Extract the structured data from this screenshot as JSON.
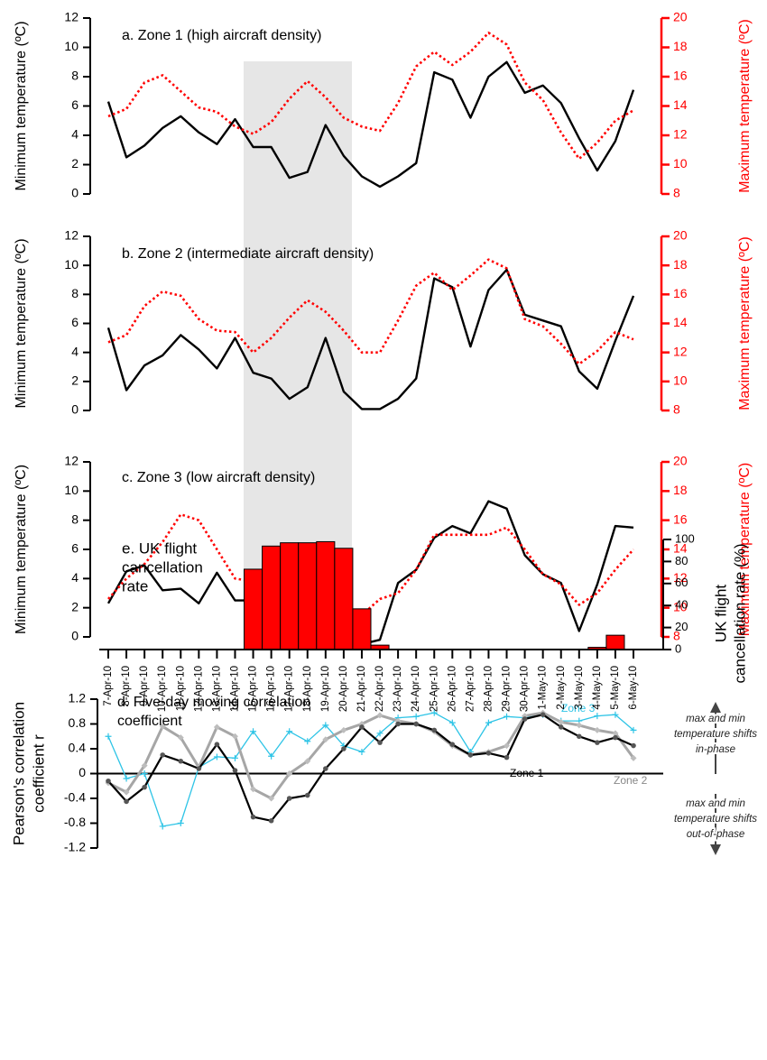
{
  "chart_data": [
    {
      "type": "line",
      "title": "a. Zone 1 (high aircraft density)",
      "ylabel": "Minimum temperature (ºC)",
      "y2label": "Maximum temperature (ºC)",
      "ylim": [
        0,
        12
      ],
      "yticks": [
        0,
        2,
        4,
        6,
        8,
        10,
        12
      ],
      "y2lim": [
        8,
        20
      ],
      "y2ticks": [
        8,
        10,
        12,
        14,
        16,
        18,
        20
      ],
      "series": [
        {
          "color": "#000000",
          "style": "solid",
          "values": [
            6.3,
            2.5,
            3.3,
            4.5,
            5.3,
            4.2,
            3.4,
            5.1,
            3.2,
            3.2,
            1.1,
            1.5,
            4.7,
            2.6,
            1.2,
            0.5,
            1.2,
            2.1,
            8.3,
            7.8,
            5.2,
            8.0,
            9.0,
            6.9,
            7.4,
            6.2,
            3.8,
            1.6,
            3.6,
            7.1
          ]
        },
        {
          "color": "#ff0000",
          "style": "dotted",
          "axis": "y2",
          "values": [
            13.3,
            13.8,
            15.6,
            16.1,
            15.0,
            13.9,
            13.6,
            12.6,
            12.1,
            12.9,
            14.5,
            15.7,
            14.6,
            13.2,
            12.6,
            12.3,
            14.2,
            16.7,
            17.7,
            16.8,
            17.7,
            19.0,
            18.2,
            15.6,
            14.4,
            12.2,
            10.4,
            11.5,
            13.0,
            13.7
          ]
        }
      ]
    },
    {
      "type": "line",
      "title": "b. Zone 2 (intermediate aircraft density)",
      "ylabel": "Minimum temperature (ºC)",
      "y2label": "Maximum temperature (ºC)",
      "ylim": [
        0,
        12
      ],
      "yticks": [
        0,
        2,
        4,
        6,
        8,
        10,
        12
      ],
      "y2lim": [
        8,
        20
      ],
      "y2ticks": [
        8,
        10,
        12,
        14,
        16,
        18,
        20
      ],
      "series": [
        {
          "color": "#000000",
          "style": "solid",
          "values": [
            5.7,
            1.4,
            3.1,
            3.8,
            5.2,
            4.2,
            2.9,
            5.0,
            2.6,
            2.2,
            0.8,
            1.6,
            5.0,
            1.3,
            0.1,
            0.1,
            0.8,
            2.2,
            9.1,
            8.5,
            4.4,
            8.3,
            9.7,
            6.6,
            6.2,
            5.8,
            2.7,
            1.5,
            4.8,
            7.9
          ]
        },
        {
          "color": "#ff0000",
          "style": "dotted",
          "axis": "y2",
          "values": [
            12.7,
            13.2,
            15.2,
            16.2,
            15.9,
            14.3,
            13.5,
            13.4,
            12.0,
            13.0,
            14.4,
            15.6,
            14.8,
            13.5,
            12.0,
            12.0,
            14.2,
            16.6,
            17.5,
            16.3,
            17.3,
            18.4,
            17.8,
            14.3,
            13.8,
            12.6,
            11.2,
            12.1,
            13.4,
            12.9
          ]
        }
      ]
    },
    {
      "type": "line",
      "title": "c. Zone 3 (low aircraft density)",
      "ylabel": "Minimum temperature (ºC)",
      "y2label": "Maximum temperature (ºC)",
      "ylim": [
        0,
        12
      ],
      "yticks": [
        0,
        2,
        4,
        6,
        8,
        10,
        12
      ],
      "y2lim": [
        8,
        20
      ],
      "y2ticks": [
        8,
        10,
        12,
        14,
        16,
        18,
        20
      ],
      "series": [
        {
          "color": "#000000",
          "style": "solid",
          "values": [
            2.3,
            4.5,
            4.9,
            3.2,
            3.3,
            2.3,
            4.4,
            2.5,
            2.5,
            1.4,
            3.6,
            3.2,
            0.8,
            2.4,
            -0.5,
            -0.2,
            3.7,
            4.6,
            6.8,
            7.6,
            7.1,
            9.3,
            8.8,
            5.6,
            4.3,
            3.7,
            0.4,
            3.6,
            7.6,
            7.5
          ]
        },
        {
          "color": "#ff0000",
          "style": "dotted",
          "axis": "y2",
          "values": [
            10.6,
            12.0,
            13.0,
            14.5,
            16.4,
            16.0,
            14.0,
            12.0,
            11.8,
            13.0,
            14.0,
            11.8,
            10.0,
            9.5,
            9.5,
            10.6,
            11.0,
            12.6,
            15.0,
            15.0,
            15.0,
            15.0,
            15.5,
            14.0,
            12.3,
            11.6,
            10.2,
            11.0,
            12.6,
            14.0
          ]
        }
      ]
    },
    {
      "type": "correlation",
      "title": [
        "d. Five-day moving correlation",
        "coefficient"
      ],
      "ylabel": [
        "Pearson's correlation",
        "coefficient r"
      ],
      "ylim": [
        -1.2,
        1.2
      ],
      "yticks": [
        -1.2,
        -0.8,
        -0.4,
        0,
        0.4,
        0.8,
        1.2
      ],
      "zero_line": true,
      "annotations": [
        [
          "max and min",
          "temperature shifts",
          "in-phase"
        ],
        [
          "max and min",
          "temperature shifts",
          "out-of-phase"
        ]
      ],
      "series": [
        {
          "name": "Zone 1",
          "color": "#000000",
          "marker": "circle",
          "values": [
            -0.12,
            -0.45,
            -0.22,
            0.3,
            0.2,
            0.08,
            0.47,
            0.05,
            -0.7,
            -0.76,
            -0.4,
            -0.35,
            0.08,
            0.4,
            0.75,
            0.5,
            0.8,
            0.8,
            0.7,
            0.47,
            0.3,
            0.33,
            0.26,
            0.88,
            0.95,
            0.75,
            0.6,
            0.5,
            0.58,
            0.45
          ]
        },
        {
          "name": "Zone 2",
          "color": "#a6a6a6",
          "marker": "diamond",
          "values": [
            -0.15,
            -0.3,
            0.13,
            0.76,
            0.58,
            0.1,
            0.75,
            0.6,
            -0.25,
            -0.4,
            0.0,
            0.2,
            0.55,
            0.7,
            0.8,
            0.94,
            0.85,
            0.8,
            0.68,
            0.45,
            0.3,
            0.35,
            0.45,
            0.93,
            0.98,
            0.83,
            0.78,
            0.7,
            0.65,
            0.25
          ]
        },
        {
          "name": "Zone 3",
          "color": "#2ec4e6",
          "marker": "plus",
          "values": [
            0.6,
            -0.08,
            0.0,
            -0.85,
            -0.8,
            0.1,
            0.27,
            0.25,
            0.68,
            0.28,
            0.68,
            0.52,
            0.78,
            0.45,
            0.35,
            0.65,
            0.9,
            0.92,
            0.98,
            0.82,
            0.35,
            0.82,
            0.92,
            0.9,
            0.95,
            0.85,
            0.85,
            0.93,
            0.95,
            0.7
          ]
        }
      ]
    },
    {
      "type": "bar",
      "title": [
        "e. UK flight",
        "cancellation",
        "rate"
      ],
      "ylabel": [
        "UK flight",
        "cancellation rate (%)"
      ],
      "color": "#ff0000",
      "ylim": [
        0,
        100
      ],
      "yticks": [
        0,
        20,
        40,
        60,
        80,
        100
      ],
      "categories": [
        "7-Apr-10",
        "8-Apr-10",
        "9-Apr-10",
        "10-Apr-10",
        "11-Apr-10",
        "12-Apr-10",
        "13-Apr-10",
        "14-Apr-10",
        "15-Apr-10",
        "16-Apr-10",
        "17-Apr-10",
        "18-Apr-10",
        "19-Apr-10",
        "20-Apr-10",
        "21-Apr-10",
        "22-Apr-10",
        "23-Apr-10",
        "24-Apr-10",
        "25-Apr-10",
        "26-Apr-10",
        "27-Apr-10",
        "28-Apr-10",
        "29-Apr-10",
        "30-Apr-10",
        "1-May-10",
        "2-May-10",
        "3-May-10",
        "4-May-10",
        "5-May-10",
        "6-May-10"
      ],
      "values": [
        0,
        0,
        0,
        0,
        0,
        0,
        0,
        0,
        73,
        94,
        97,
        97,
        98,
        92,
        37,
        4,
        0,
        0,
        0,
        0,
        0,
        0,
        0,
        0,
        0,
        0,
        0,
        2,
        13,
        0
      ]
    }
  ]
}
